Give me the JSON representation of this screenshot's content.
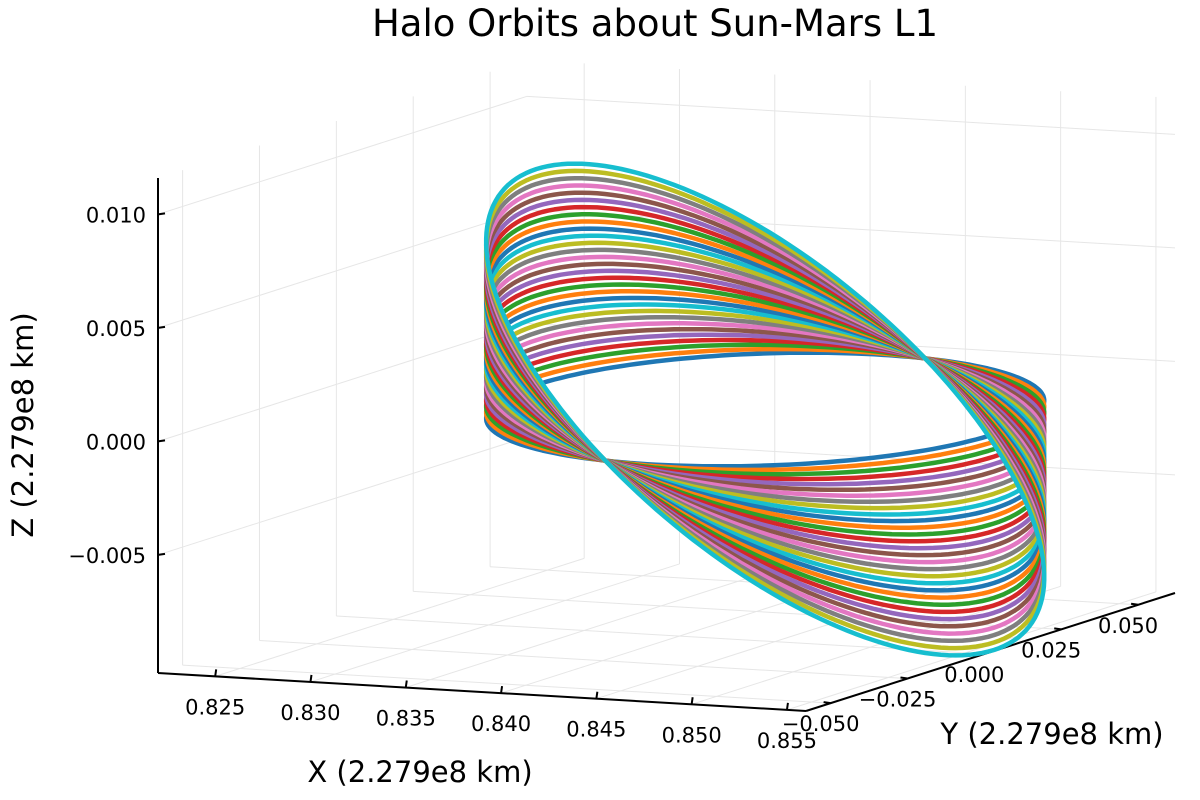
{
  "chart_data": {
    "type": "line",
    "title": "Halo Orbits about Sun-Mars L1",
    "xlabel": "X (2.279e8 km)",
    "ylabel": "Y (2.279e8 km)",
    "zlabel": "Z (2.279e8 km)",
    "x_ticks": [
      "0.825",
      "0.830",
      "0.835",
      "0.840",
      "0.845",
      "0.850",
      "0.855"
    ],
    "y_ticks": [
      "−0.050",
      "−0.025",
      "0.000",
      "0.025",
      "0.050"
    ],
    "z_ticks": [
      "−0.005",
      "0.000",
      "0.005",
      "0.010"
    ],
    "xlim": [
      0.822,
      0.856
    ],
    "ylim": [
      -0.058,
      0.062
    ],
    "zlim": [
      -0.0102,
      0.0116
    ],
    "grid": true,
    "legend": "none",
    "orbit_count": 30,
    "orbit_family": {
      "x_center": 0.8445,
      "x_amplitude": 0.012,
      "y_amplitude": 0.052,
      "z_amplitude_min": 0.0005,
      "z_amplitude_max": 0.01
    },
    "palette": [
      "#1f77b4",
      "#ff7f0e",
      "#2ca02c",
      "#d62728",
      "#9467bd",
      "#8c564b",
      "#e377c2",
      "#7f7f7f",
      "#bcbd22",
      "#17becf"
    ]
  }
}
